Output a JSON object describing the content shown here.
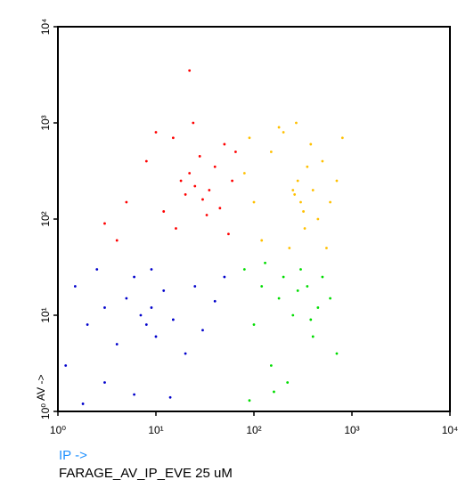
{
  "chart_data": {
    "type": "scatter",
    "x_label": "IP ->",
    "y_label": "AV ->",
    "sample_label": "FARAGE_AV_IP_EVE 25 uM",
    "log_x": true,
    "log_y": true,
    "xlim": [
      1,
      10000
    ],
    "ylim": [
      1,
      10000
    ],
    "xticks": [
      {
        "value": 1,
        "label": "10⁰"
      },
      {
        "value": 10,
        "label": "10¹"
      },
      {
        "value": 100,
        "label": "10²"
      },
      {
        "value": 1000,
        "label": "10³"
      },
      {
        "value": 10000,
        "label": "10⁴"
      }
    ],
    "yticks": [
      {
        "value": 1,
        "label": "10⁰"
      },
      {
        "value": 10,
        "label": "10¹"
      },
      {
        "value": 100,
        "label": "10²"
      },
      {
        "value": 1000,
        "label": "10³"
      },
      {
        "value": 10000,
        "label": "10⁴"
      }
    ],
    "series": [
      {
        "color": "#ff0000",
        "x": [
          5,
          8,
          12,
          15,
          18,
          20,
          22,
          25,
          28,
          30,
          35,
          40,
          45,
          50,
          60,
          3,
          4,
          10,
          16,
          24,
          33,
          55,
          65,
          22
        ],
        "values": [
          150,
          400,
          120,
          700,
          250,
          180,
          300,
          220,
          450,
          160,
          200,
          350,
          130,
          600,
          250,
          90,
          60,
          800,
          80,
          1000,
          110,
          70,
          500,
          3500
        ]
      },
      {
        "color": "#ffc000",
        "x": [
          80,
          100,
          150,
          200,
          250,
          280,
          300,
          320,
          350,
          400,
          450,
          500,
          600,
          700,
          120,
          180,
          230,
          270,
          330,
          380,
          90,
          550,
          260,
          800
        ],
        "values": [
          300,
          150,
          500,
          800,
          200,
          250,
          150,
          120,
          350,
          200,
          100,
          400,
          150,
          250,
          60,
          900,
          50,
          1000,
          80,
          600,
          700,
          50,
          180,
          700
        ]
      },
      {
        "color": "#0000cc",
        "x": [
          1.2,
          1.5,
          2,
          2.5,
          3,
          4,
          5,
          6,
          7,
          8,
          9,
          10,
          12,
          15,
          20,
          25,
          30,
          40,
          50,
          3,
          6,
          9,
          1.8,
          14
        ],
        "values": [
          3,
          20,
          8,
          30,
          12,
          5,
          15,
          25,
          10,
          8,
          12,
          6,
          18,
          9,
          4,
          20,
          7,
          14,
          25,
          2,
          1.5,
          30,
          1.2,
          1.4
        ]
      },
      {
        "color": "#00dd00",
        "x": [
          80,
          100,
          120,
          150,
          180,
          200,
          250,
          300,
          350,
          400,
          450,
          500,
          600,
          700,
          130,
          220,
          280,
          380,
          90,
          160
        ],
        "values": [
          30,
          8,
          20,
          3,
          15,
          25,
          10,
          30,
          20,
          6,
          12,
          25,
          15,
          4,
          35,
          2,
          18,
          9,
          1.3,
          1.6
        ]
      }
    ]
  }
}
